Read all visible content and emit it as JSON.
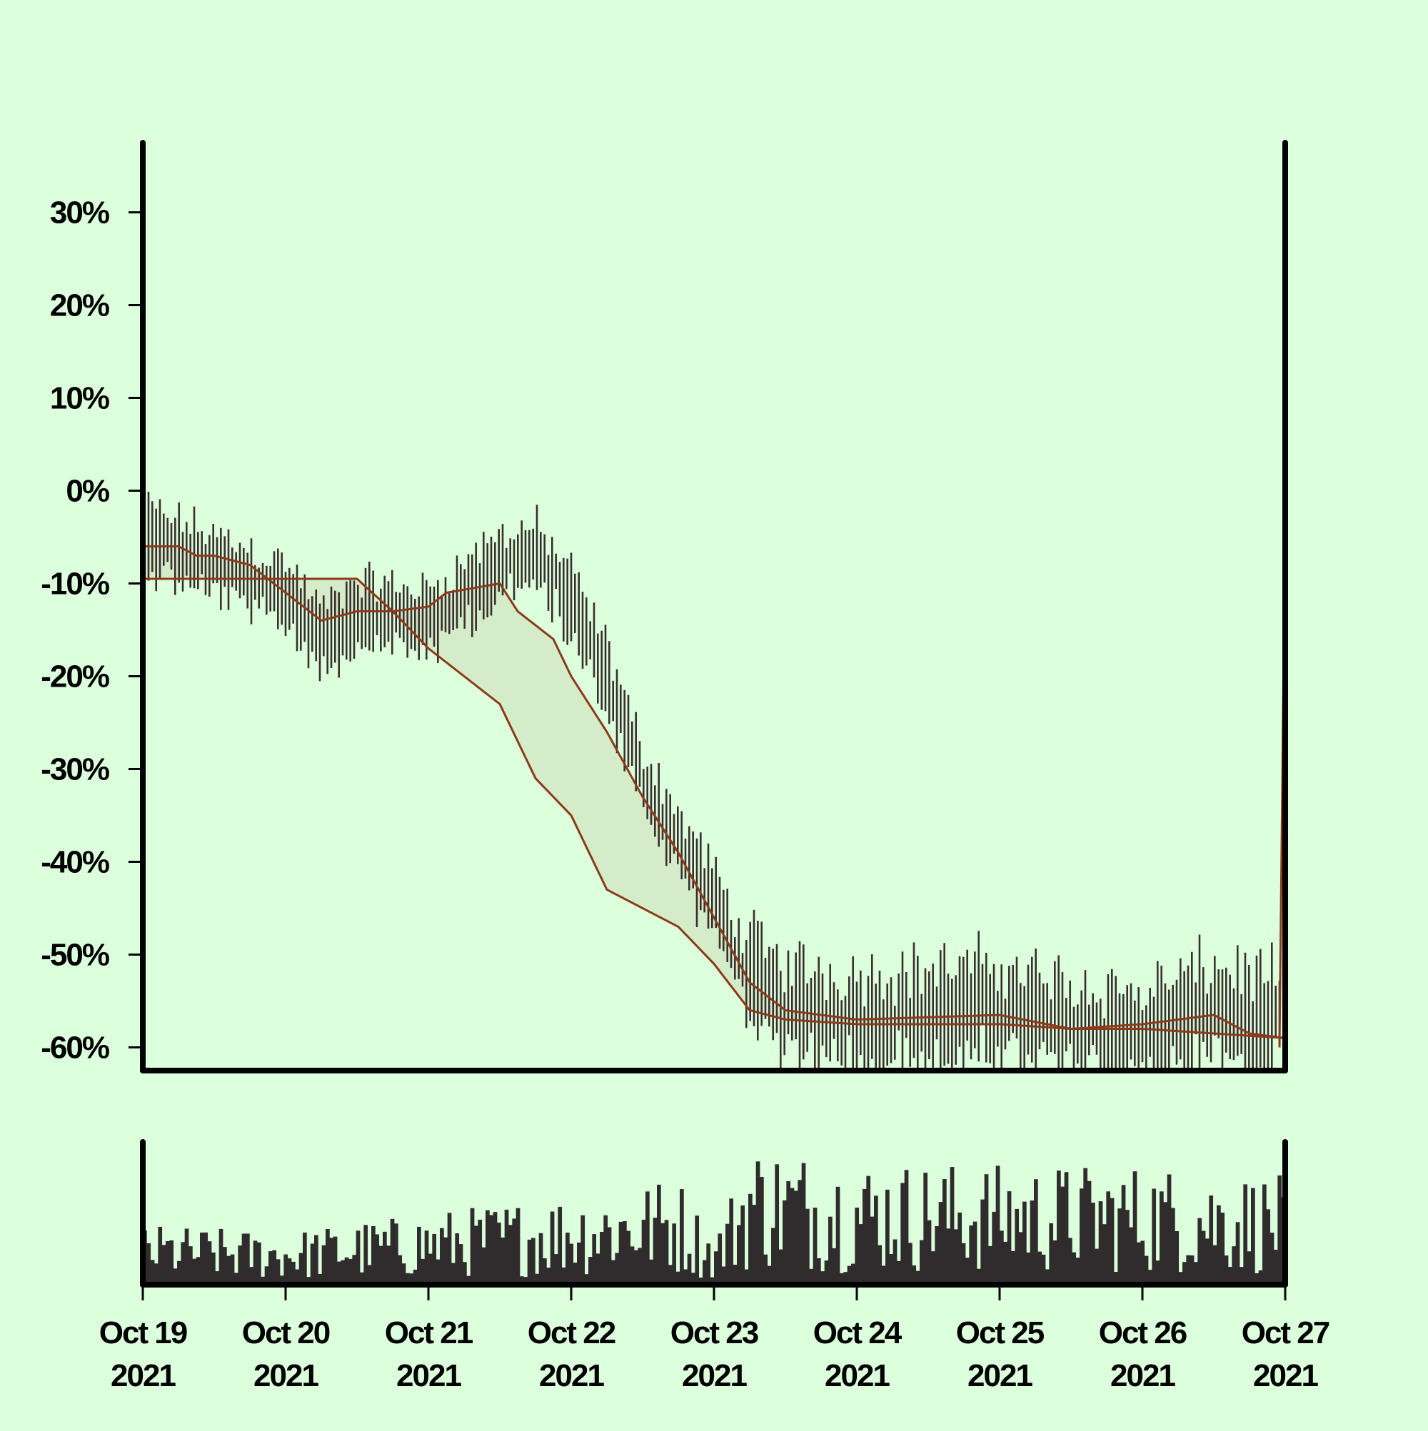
{
  "colors": {
    "background": "#dcffdc",
    "candle": "#3a2e2e",
    "band_line": "#8b3a1a",
    "band_fill": "#d4ecc8",
    "volume": "#302c2e",
    "axis": "#000000"
  },
  "chart_data": {
    "type": "line",
    "title": "",
    "xlabel": "",
    "ylabel": "",
    "x_range": [
      "2021-10-19",
      "2021-10-27"
    ],
    "ylim": [
      -62.5,
      37.5
    ],
    "yticks": [
      {
        "value": 30,
        "label": "30%"
      },
      {
        "value": 20,
        "label": "20%"
      },
      {
        "value": 10,
        "label": "10%"
      },
      {
        "value": 0,
        "label": "0%"
      },
      {
        "value": -10,
        "label": "-10%"
      },
      {
        "value": -20,
        "label": "-20%"
      },
      {
        "value": -30,
        "label": "-30%"
      },
      {
        "value": -40,
        "label": "-40%"
      },
      {
        "value": -50,
        "label": "-50%"
      },
      {
        "value": -60,
        "label": "-60%"
      }
    ],
    "xticks": [
      {
        "date": "2021-10-19",
        "line1": "Oct 19",
        "line2": "2021"
      },
      {
        "date": "2021-10-20",
        "line1": "Oct 20",
        "line2": "2021"
      },
      {
        "date": "2021-10-21",
        "line1": "Oct 21",
        "line2": "2021"
      },
      {
        "date": "2021-10-22",
        "line1": "Oct 22",
        "line2": "2021"
      },
      {
        "date": "2021-10-23",
        "line1": "Oct 23",
        "line2": "2021"
      },
      {
        "date": "2021-10-24",
        "line1": "Oct 24",
        "line2": "2021"
      },
      {
        "date": "2021-10-25",
        "line1": "Oct 25",
        "line2": "2021"
      },
      {
        "date": "2021-10-26",
        "line1": "Oct 26",
        "line2": "2021"
      },
      {
        "date": "2021-10-27",
        "line1": "Oct 27",
        "line2": "2021"
      }
    ],
    "grid": false,
    "legend": "none",
    "price_anchors": [
      {
        "date": "2021-10-19 00:00",
        "value": -5
      },
      {
        "date": "2021-10-19 12:00",
        "value": -8
      },
      {
        "date": "2021-10-20 00:00",
        "value": -11
      },
      {
        "date": "2021-10-20 06:00",
        "value": -16
      },
      {
        "date": "2021-10-20 12:00",
        "value": -13
      },
      {
        "date": "2021-10-21 00:00",
        "value": -14
      },
      {
        "date": "2021-10-21 06:00",
        "value": -11
      },
      {
        "date": "2021-10-21 12:00",
        "value": -8
      },
      {
        "date": "2021-10-21 18:00",
        "value": -7
      },
      {
        "date": "2021-10-22 00:00",
        "value": -12
      },
      {
        "date": "2021-10-22 06:00",
        "value": -20
      },
      {
        "date": "2021-10-22 12:00",
        "value": -31
      },
      {
        "date": "2021-10-22 18:00",
        "value": -38
      },
      {
        "date": "2021-10-23 00:00",
        "value": -44
      },
      {
        "date": "2021-10-23 06:00",
        "value": -53
      },
      {
        "date": "2021-10-23 12:00",
        "value": -56
      },
      {
        "date": "2021-10-24 00:00",
        "value": -57
      },
      {
        "date": "2021-10-25 00:00",
        "value": -56
      },
      {
        "date": "2021-10-25 12:00",
        "value": -58
      },
      {
        "date": "2021-10-26 00:00",
        "value": -59
      },
      {
        "date": "2021-10-26 12:00",
        "value": -56
      },
      {
        "date": "2021-10-26 23:30",
        "value": -58
      }
    ],
    "band_upper": [
      {
        "date": "2021-10-19 00:00",
        "value": -6
      },
      {
        "date": "2021-10-19 06:00",
        "value": -6
      },
      {
        "date": "2021-10-19 09:00",
        "value": -7
      },
      {
        "date": "2021-10-19 12:00",
        "value": -7
      },
      {
        "date": "2021-10-19 18:00",
        "value": -8
      },
      {
        "date": "2021-10-20 00:00",
        "value": -11
      },
      {
        "date": "2021-10-20 06:00",
        "value": -14
      },
      {
        "date": "2021-10-20 12:00",
        "value": -13
      },
      {
        "date": "2021-10-20 18:00",
        "value": -13
      },
      {
        "date": "2021-10-21 00:00",
        "value": -12.5
      },
      {
        "date": "2021-10-21 03:00",
        "value": -11
      },
      {
        "date": "2021-10-21 12:00",
        "value": -10
      },
      {
        "date": "2021-10-21 15:00",
        "value": -13
      },
      {
        "date": "2021-10-21 21:00",
        "value": -16
      },
      {
        "date": "2021-10-22 00:00",
        "value": -20
      },
      {
        "date": "2021-10-22 06:00",
        "value": -26
      },
      {
        "date": "2021-10-22 12:00",
        "value": -33
      },
      {
        "date": "2021-10-22 18:00",
        "value": -39
      },
      {
        "date": "2021-10-23 00:00",
        "value": -46
      },
      {
        "date": "2021-10-23 06:00",
        "value": -53
      },
      {
        "date": "2021-10-23 12:00",
        "value": -56
      },
      {
        "date": "2021-10-24 00:00",
        "value": -57
      },
      {
        "date": "2021-10-25 00:00",
        "value": -56.5
      },
      {
        "date": "2021-10-25 12:00",
        "value": -58
      },
      {
        "date": "2021-10-26 00:00",
        "value": -57.5
      },
      {
        "date": "2021-10-26 12:00",
        "value": -56.5
      },
      {
        "date": "2021-10-26 18:00",
        "value": -58.5
      },
      {
        "date": "2021-10-27 00:00",
        "value": -59
      }
    ],
    "band_lower": [
      {
        "date": "2021-10-19 00:00",
        "value": -9.5
      },
      {
        "date": "2021-10-20 12:00",
        "value": -9.5
      },
      {
        "date": "2021-10-20 18:00",
        "value": -13
      },
      {
        "date": "2021-10-21 00:00",
        "value": -17
      },
      {
        "date": "2021-10-21 06:00",
        "value": -20
      },
      {
        "date": "2021-10-21 12:00",
        "value": -23
      },
      {
        "date": "2021-10-21 18:00",
        "value": -31
      },
      {
        "date": "2021-10-22 00:00",
        "value": -35
      },
      {
        "date": "2021-10-22 06:00",
        "value": -43
      },
      {
        "date": "2021-10-22 12:00",
        "value": -45
      },
      {
        "date": "2021-10-22 18:00",
        "value": -47
      },
      {
        "date": "2021-10-23 00:00",
        "value": -51
      },
      {
        "date": "2021-10-23 06:00",
        "value": -56
      },
      {
        "date": "2021-10-23 12:00",
        "value": -57
      },
      {
        "date": "2021-10-24 00:00",
        "value": -57.5
      },
      {
        "date": "2021-10-25 00:00",
        "value": -57.5
      },
      {
        "date": "2021-10-25 12:00",
        "value": -58
      },
      {
        "date": "2021-10-26 00:00",
        "value": -58
      },
      {
        "date": "2021-10-26 12:00",
        "value": -58.5
      },
      {
        "date": "2021-10-27 00:00",
        "value": -59
      }
    ],
    "final_spike": {
      "date": "2021-10-27 00:00",
      "from": -60,
      "to": -17
    },
    "volume_range": [
      0,
      100
    ],
    "volume_level": [
      {
        "date": "2021-10-19 00:00",
        "value": 25
      },
      {
        "date": "2021-10-20 00:00",
        "value": 22
      },
      {
        "date": "2021-10-21 00:00",
        "value": 30
      },
      {
        "date": "2021-10-22 00:00",
        "value": 38
      },
      {
        "date": "2021-10-22 18:00",
        "value": 45
      },
      {
        "date": "2021-10-23 00:00",
        "value": 20
      },
      {
        "date": "2021-10-23 06:00",
        "value": 60
      },
      {
        "date": "2021-10-24 00:00",
        "value": 52
      },
      {
        "date": "2021-10-25 00:00",
        "value": 50
      },
      {
        "date": "2021-10-26 00:00",
        "value": 50
      },
      {
        "date": "2021-10-27 00:00",
        "value": 45
      }
    ]
  }
}
